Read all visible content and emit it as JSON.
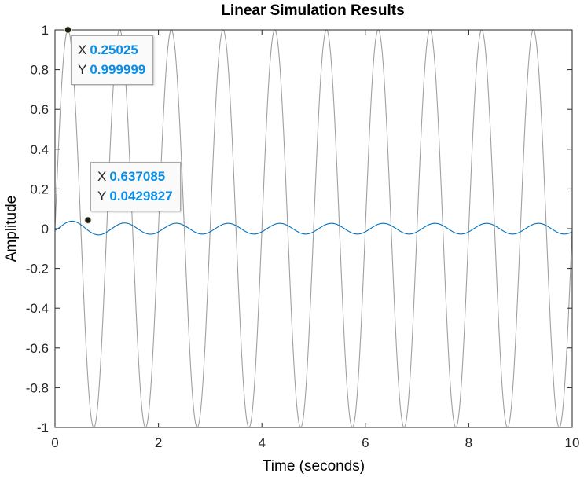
{
  "chart_data": {
    "type": "line",
    "title": "Linear Simulation Results",
    "xlabel": "Time (seconds)",
    "ylabel": "Amplitude",
    "xlim": [
      0,
      10
    ],
    "ylim": [
      -1,
      1
    ],
    "xticks": [
      "0",
      "2",
      "4",
      "6",
      "8",
      "10"
    ],
    "yticks": [
      "1",
      "0.8",
      "0.6",
      "0.4",
      "0.2",
      "0",
      "-0.2",
      "-0.4",
      "-0.6",
      "-0.8",
      "-1"
    ],
    "grid": false,
    "series": [
      {
        "kind": "input sine",
        "color": "#a0a0a0",
        "amplitude": 1.0,
        "frequency_hz": 1.0,
        "phase_deg": 0,
        "samples": 2001
      },
      {
        "kind": "response sine",
        "color": "#0072bd",
        "amplitude": 0.027,
        "frequency_hz": 1.0,
        "lag_deg": 35,
        "initial_peak": 0.043,
        "decay_time_s": 0.6,
        "samples": 2001
      }
    ],
    "datatips": [
      {
        "x_label": "X",
        "x_value": "0.25025",
        "x": 0.25025,
        "y_label": "Y",
        "y_value": "0.999999",
        "y": 0.999999
      },
      {
        "x_label": "X",
        "x_value": "0.637085",
        "x": 0.637085,
        "y_label": "Y",
        "y_value": "0.0429827",
        "y": 0.0429827
      }
    ]
  }
}
